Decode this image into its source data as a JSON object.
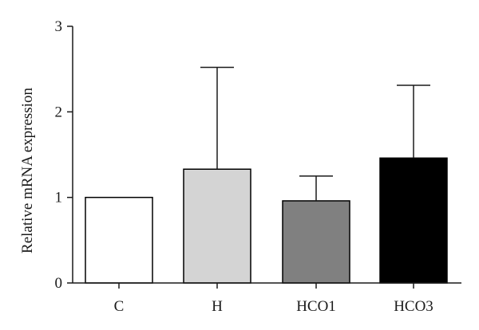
{
  "chart_data": {
    "type": "bar",
    "title": "",
    "xlabel": "",
    "ylabel": "Relative mRNA expression",
    "ylim": [
      0,
      3
    ],
    "yticks": [
      0,
      1,
      2,
      3
    ],
    "grid": false,
    "legend": "none",
    "categories": [
      "C",
      "H",
      "HCO1",
      "HCO3"
    ],
    "values": [
      1.0,
      1.33,
      0.96,
      1.46
    ],
    "error_upper": [
      null,
      2.52,
      1.25,
      2.31
    ],
    "bar_colors": [
      "#ffffff",
      "#d4d4d4",
      "#808080",
      "#000000"
    ],
    "edge_color": "#000000"
  }
}
